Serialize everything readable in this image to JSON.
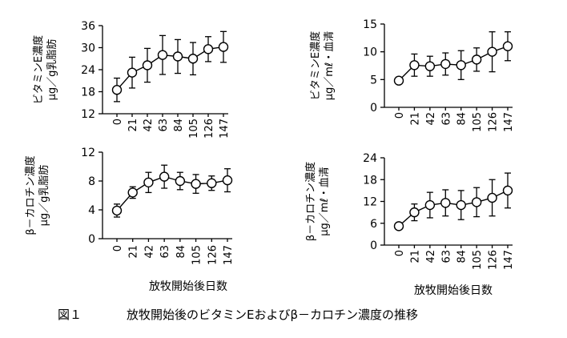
{
  "chart_data": [
    {
      "type": "line",
      "ylabel": [
        "ビタミンE濃度",
        "μg／g乳脂肪"
      ],
      "x": [
        "0",
        "21",
        "42",
        "63",
        "84",
        "105",
        "126",
        "147"
      ],
      "ylim": [
        12,
        36
      ],
      "yticks": [
        12,
        18,
        24,
        30,
        36
      ],
      "series": [
        {
          "values": [
            18.5,
            23.2,
            25.2,
            28.0,
            27.6,
            27.0,
            29.6,
            30.2
          ],
          "error": [
            3.2,
            4.2,
            4.6,
            5.3,
            4.6,
            4.4,
            3.4,
            4.2
          ]
        }
      ]
    },
    {
      "type": "line",
      "ylabel": [
        "ビタミンE濃度",
        "μg／mℓ・血清"
      ],
      "x": [
        "0",
        "21",
        "42",
        "63",
        "84",
        "105",
        "126",
        "147"
      ],
      "ylim": [
        0,
        15
      ],
      "yticks": [
        0,
        5,
        10,
        15
      ],
      "series": [
        {
          "values": [
            4.8,
            7.6,
            7.4,
            7.8,
            7.6,
            8.6,
            10.0,
            11.0
          ],
          "error": [
            0.5,
            2.0,
            1.8,
            2.0,
            2.6,
            2.1,
            3.6,
            2.6
          ]
        }
      ]
    },
    {
      "type": "line",
      "ylabel": [
        "β－カロチン濃度",
        "μg／g乳脂肪"
      ],
      "x": [
        "0",
        "21",
        "42",
        "63",
        "84",
        "105",
        "126",
        "147"
      ],
      "ylim": [
        0,
        12
      ],
      "yticks": [
        0,
        4,
        8,
        12
      ],
      "series": [
        {
          "values": [
            3.9,
            6.4,
            7.8,
            8.6,
            8.0,
            7.6,
            7.7,
            8.1
          ],
          "error": [
            0.9,
            0.8,
            1.4,
            1.6,
            1.2,
            1.3,
            1.0,
            1.6
          ]
        }
      ]
    },
    {
      "type": "line",
      "ylabel": [
        "β－カロチン濃度",
        "μg／mℓ・血清"
      ],
      "x": [
        "0",
        "21",
        "42",
        "63",
        "84",
        "105",
        "126",
        "147"
      ],
      "ylim": [
        0,
        24
      ],
      "yticks": [
        0,
        6,
        12,
        18,
        24
      ],
      "series": [
        {
          "values": [
            5.2,
            9.0,
            11.0,
            11.6,
            11.0,
            11.8,
            13.0,
            15.0
          ],
          "error": [
            0.6,
            2.3,
            3.5,
            3.6,
            4.0,
            4.0,
            5.0,
            4.8
          ]
        }
      ]
    }
  ],
  "xlabel": "放牧開始後日数",
  "caption": {
    "label": "図１",
    "title": "放牧開始後のビタミンEおよびβ－カロチン濃度の推移"
  }
}
